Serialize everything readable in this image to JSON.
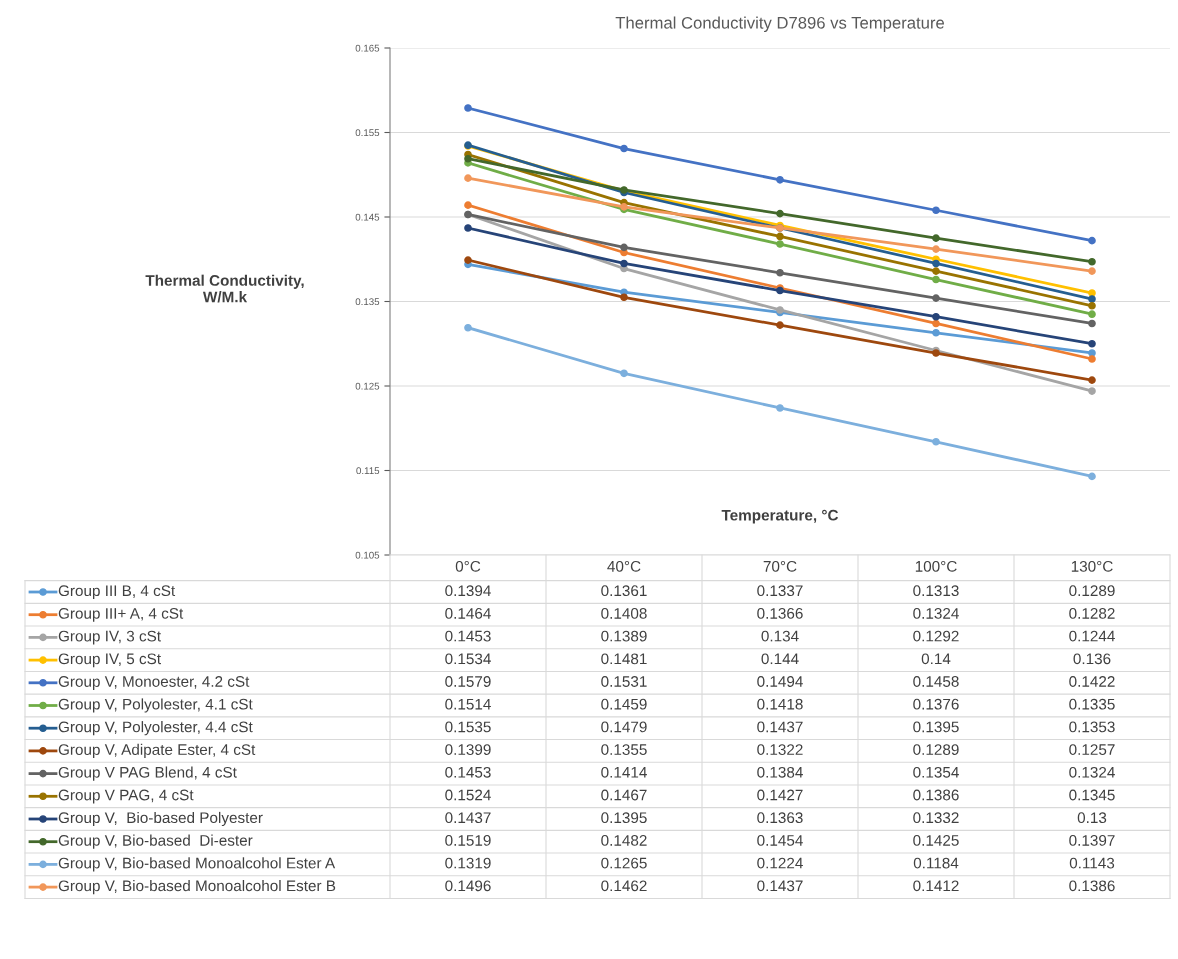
{
  "chart_data": {
    "type": "line",
    "title": "Thermal Conductivity D7896 vs Temperature",
    "xlabel": "Temperature, °C",
    "ylabel": "Thermal Conductivity,\nW/M.k",
    "categories": [
      "0°C",
      "40°C",
      "70°C",
      "100°C",
      "130°C"
    ],
    "ylim": [
      0.105,
      0.165
    ],
    "yticks": [
      0.105,
      0.115,
      0.125,
      0.135,
      0.145,
      0.155,
      0.165
    ],
    "grid": "y",
    "marker": "circle",
    "line_style": "solid",
    "legend": "bottom",
    "data_labels": true,
    "series": [
      {
        "name": "Group III B, 4 cSt",
        "color": "#5b9bd5",
        "values": [
          0.1394,
          0.1361,
          0.1337,
          0.1313,
          0.1289
        ]
      },
      {
        "name": "Group III+ A, 4 cSt",
        "color": "#ed7d31",
        "values": [
          0.1464,
          0.1408,
          0.1366,
          0.1324,
          0.1282
        ]
      },
      {
        "name": "Group IV, 3 cSt",
        "color": "#a5a5a5",
        "values": [
          0.1453,
          0.1389,
          0.134,
          0.1292,
          0.1244
        ]
      },
      {
        "name": "Group IV, 5 cSt",
        "color": "#ffc000",
        "values": [
          0.1534,
          0.1481,
          0.144,
          0.14,
          0.136
        ]
      },
      {
        "name": "Group V, Monoester, 4.2 cSt",
        "color": "#4472c4",
        "values": [
          0.1579,
          0.1531,
          0.1494,
          0.1458,
          0.1422
        ]
      },
      {
        "name": "Group V, Polyolester, 4.1 cSt",
        "color": "#70ad47",
        "values": [
          0.1514,
          0.1459,
          0.1418,
          0.1376,
          0.1335
        ]
      },
      {
        "name": "Group V, Polyolester, 4.4 cSt",
        "color": "#255e91",
        "values": [
          0.1535,
          0.1479,
          0.1437,
          0.1395,
          0.1353
        ]
      },
      {
        "name": "Group V, Adipate Ester, 4 cSt",
        "color": "#9e480e",
        "values": [
          0.1399,
          0.1355,
          0.1322,
          0.1289,
          0.1257
        ]
      },
      {
        "name": "Group V PAG Blend, 4 cSt",
        "color": "#636363",
        "values": [
          0.1453,
          0.1414,
          0.1384,
          0.1354,
          0.1324
        ]
      },
      {
        "name": "Group V PAG, 4 cSt",
        "color": "#997300",
        "values": [
          0.1524,
          0.1467,
          0.1427,
          0.1386,
          0.1345
        ]
      },
      {
        "name": "Group V,  Bio-based Polyester",
        "color": "#264478",
        "values": [
          0.1437,
          0.1395,
          0.1363,
          0.1332,
          0.13
        ]
      },
      {
        "name": "Group V, Bio-based  Di-ester",
        "color": "#43682b",
        "values": [
          0.1519,
          0.1482,
          0.1454,
          0.1425,
          0.1397
        ]
      },
      {
        "name": "Group V, Bio-based Monoalcohol Ester A",
        "color": "#7cafdd",
        "values": [
          0.1319,
          0.1265,
          0.1224,
          0.1184,
          0.1143
        ]
      },
      {
        "name": "Group V, Bio-based Monoalcohol Ester B",
        "color": "#f1975a",
        "values": [
          0.1496,
          0.1462,
          0.1437,
          0.1412,
          0.1386
        ]
      }
    ]
  }
}
